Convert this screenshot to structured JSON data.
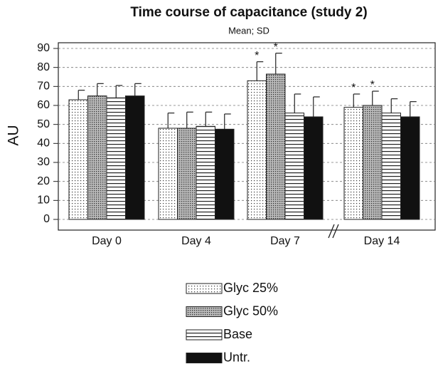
{
  "chart_data": {
    "type": "bar",
    "title": "Time course of capacitance (study 2)",
    "subtitle": "Mean; SD",
    "y_label": "AU",
    "categories": [
      "Day 0",
      "Day 4",
      "Day 7",
      "Day 14"
    ],
    "series": [
      {
        "name": "Glyc 25%",
        "pattern": "dots",
        "values": [
          63,
          48,
          73,
          59
        ],
        "errors": [
          5,
          8,
          10,
          7
        ],
        "annotations": [
          null,
          null,
          "*",
          "*"
        ]
      },
      {
        "name": "Glyc 50%",
        "pattern": "dense-dots",
        "values": [
          65,
          48,
          76.5,
          60
        ],
        "errors": [
          6.5,
          8.5,
          11,
          7.5
        ],
        "annotations": [
          null,
          null,
          "*",
          "*"
        ]
      },
      {
        "name": "Base",
        "pattern": "hlines",
        "values": [
          64,
          49,
          56,
          56
        ],
        "errors": [
          6.5,
          7.5,
          10,
          7.5
        ],
        "annotations": [
          null,
          null,
          null,
          null
        ]
      },
      {
        "name": "Untr.",
        "pattern": "solid",
        "values": [
          65,
          47.5,
          54,
          54
        ],
        "errors": [
          6.5,
          8,
          10.5,
          8
        ],
        "annotations": [
          null,
          null,
          null,
          null
        ]
      }
    ],
    "ylim": [
      0,
      90
    ],
    "yticks": [
      0,
      10,
      20,
      30,
      40,
      50,
      60,
      70,
      80,
      90
    ],
    "grid": true,
    "legend": "bottom"
  }
}
